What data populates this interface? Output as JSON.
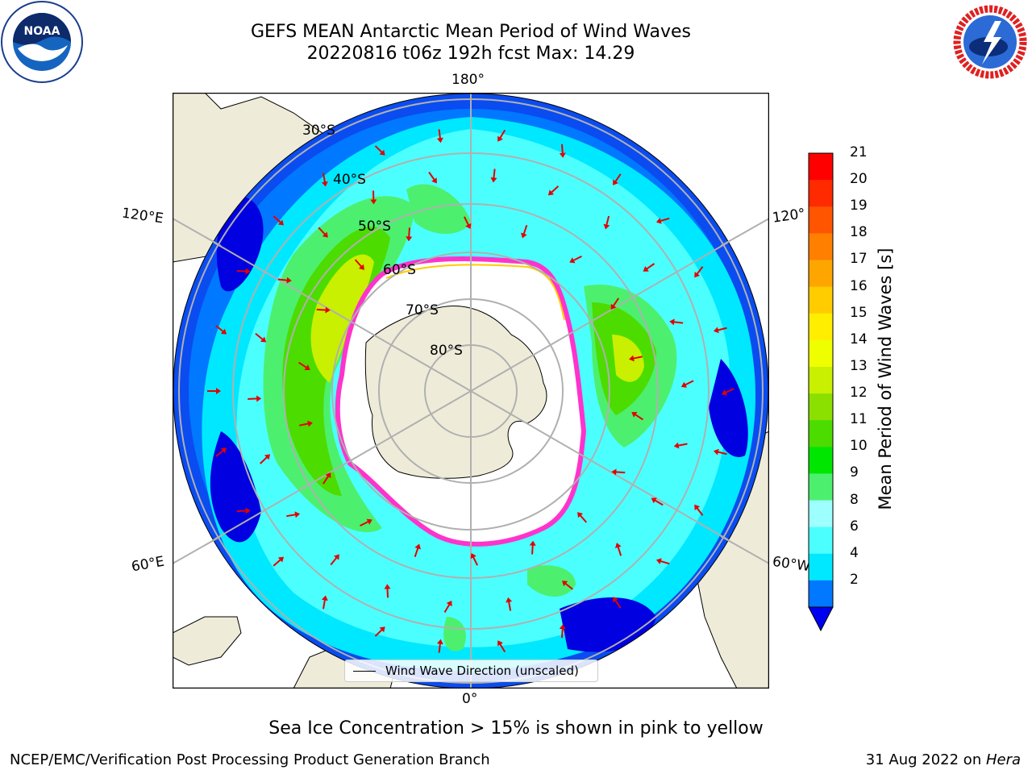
{
  "title": {
    "line1": "GEFS MEAN Antarctic Mean Period of Wind Waves",
    "line2": "20220816 t06z 192h fcst   Max: 14.29"
  },
  "map": {
    "projection": "south-polar-stereographic",
    "longitude_labels": {
      "top": "180°",
      "bottom": "0°",
      "left_upper": "120°E",
      "left_lower": "60°E",
      "right_upper": "120°",
      "right_lower": "60°W"
    },
    "latitude_labels": [
      "30°S",
      "40°S",
      "50°S",
      "60°S",
      "70°S",
      "80°S"
    ],
    "legend": "Wind Wave Direction (unscaled)",
    "colors": {
      "land": "#eeecd9",
      "ocean_blank": "#ffffff",
      "arrow": "#e30000",
      "graticule": "#b0b0b0",
      "sea_ice": "#ff33cc"
    }
  },
  "colorbar": {
    "label": "Mean Period of Wind Waves [s]",
    "ticks": [
      "21",
      "20",
      "19",
      "18",
      "17",
      "16",
      "15",
      "14",
      "13",
      "12",
      "11",
      "10",
      "9",
      "8",
      "6",
      "4",
      "2"
    ],
    "colors": [
      "#ff0000",
      "#ff2a00",
      "#ff5500",
      "#ff7f00",
      "#ffa500",
      "#ffcc00",
      "#ffee00",
      "#f0ff00",
      "#c8f000",
      "#8ce000",
      "#4cdc00",
      "#00e600",
      "#4cf06e",
      "#9effff",
      "#4cffff",
      "#00e8ff",
      "#0078ff",
      "#0000f0"
    ]
  },
  "footnote": "Sea Ice Concentration > 15% is shown in pink to yellow",
  "credits": {
    "left": "NCEP/EMC/Verification Post Processing Product Generation Branch",
    "right_date": "31 Aug 2022 on ",
    "right_machine": "Hera"
  },
  "logos": {
    "noaa": "NOAA",
    "nws": "NATIONAL WEATHER SERVICE"
  }
}
